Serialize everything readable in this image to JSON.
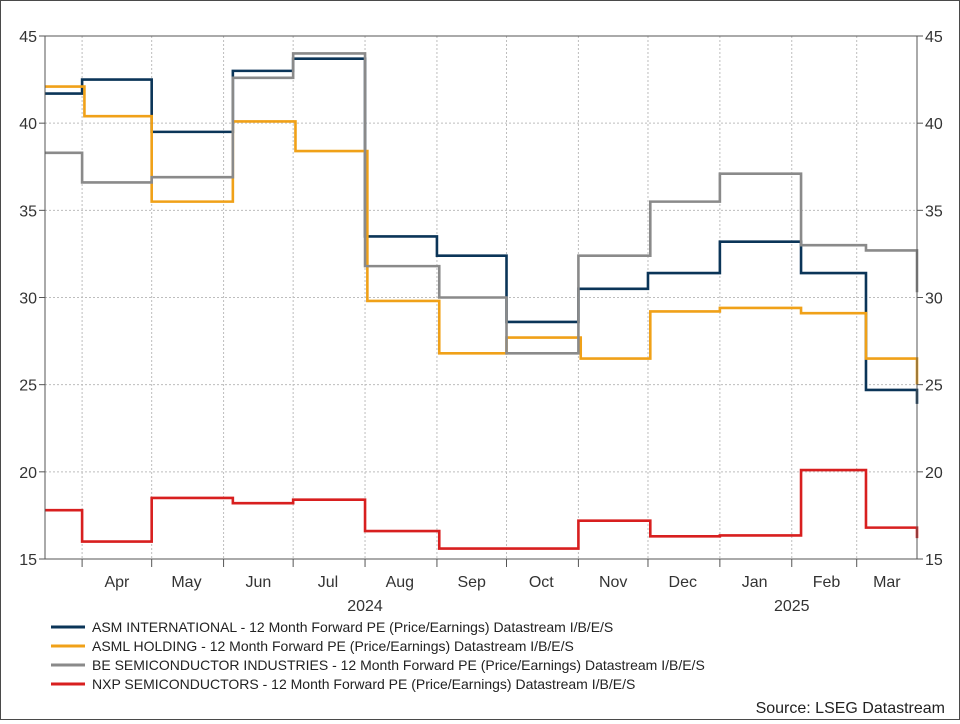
{
  "chart_data": {
    "type": "line",
    "step": true,
    "ylim": [
      15,
      45
    ],
    "yticks": [
      15,
      20,
      25,
      30,
      35,
      40,
      45
    ],
    "y_axis_sides": "both",
    "grid": true,
    "xlim": [
      "2024-03-16",
      "2025-03-27"
    ],
    "x_tick_marks": [
      "2024-04-01",
      "2024-05-01",
      "2024-06-01",
      "2024-07-01",
      "2024-08-01",
      "2024-09-01",
      "2024-10-01",
      "2024-11-01",
      "2024-12-01",
      "2025-01-01",
      "2025-02-01",
      "2025-03-01"
    ],
    "month_labels": [
      {
        "label": "Apr",
        "date": "2024-04-16"
      },
      {
        "label": "May",
        "date": "2024-05-16"
      },
      {
        "label": "Jun",
        "date": "2024-06-16"
      },
      {
        "label": "Jul",
        "date": "2024-07-16"
      },
      {
        "label": "Aug",
        "date": "2024-08-16"
      },
      {
        "label": "Sep",
        "date": "2024-09-16"
      },
      {
        "label": "Oct",
        "date": "2024-10-16"
      },
      {
        "label": "Nov",
        "date": "2024-11-16"
      },
      {
        "label": "Dec",
        "date": "2024-12-16"
      },
      {
        "label": "Jan",
        "date": "2025-01-16"
      },
      {
        "label": "Feb",
        "date": "2025-02-16"
      },
      {
        "label": "Mar",
        "date": "2025-03-14"
      }
    ],
    "year_labels": [
      {
        "label": "2024",
        "date": "2024-08-01"
      },
      {
        "label": "2025",
        "date": "2025-02-01"
      }
    ],
    "series": [
      {
        "name": "ASM INTERNATIONAL - 12 Month Forward PE (Price/Earnings) Datastream I/B/E/S",
        "color": "#0b3558",
        "points": [
          [
            "2024-03-16",
            41.7
          ],
          [
            "2024-04-01",
            42.5
          ],
          [
            "2024-05-01",
            39.5
          ],
          [
            "2024-06-05",
            43.0
          ],
          [
            "2024-07-01",
            43.7
          ],
          [
            "2024-08-01",
            33.5
          ],
          [
            "2024-09-01",
            32.4
          ],
          [
            "2024-10-01",
            28.6
          ],
          [
            "2024-11-01",
            30.5
          ],
          [
            "2024-12-01",
            31.4
          ],
          [
            "2025-01-01",
            33.2
          ],
          [
            "2025-02-05",
            31.4
          ],
          [
            "2025-03-05",
            24.7
          ],
          [
            "2025-03-24",
            24.7
          ],
          [
            "2025-03-27",
            23.9
          ]
        ]
      },
      {
        "name": "ASML HOLDING - 12 Month Forward PE (Price/Earnings) Datastream I/B/E/S",
        "color": "#f0a118",
        "points": [
          [
            "2024-03-16",
            42.1
          ],
          [
            "2024-04-02",
            40.4
          ],
          [
            "2024-05-01",
            35.5
          ],
          [
            "2024-06-05",
            40.1
          ],
          [
            "2024-07-02",
            38.4
          ],
          [
            "2024-08-02",
            29.8
          ],
          [
            "2024-09-02",
            26.8
          ],
          [
            "2024-10-01",
            27.7
          ],
          [
            "2024-11-02",
            26.5
          ],
          [
            "2024-12-02",
            29.2
          ],
          [
            "2025-01-01",
            29.4
          ],
          [
            "2025-02-05",
            29.1
          ],
          [
            "2025-03-05",
            26.5
          ],
          [
            "2025-03-24",
            26.5
          ],
          [
            "2025-03-27",
            25.0
          ]
        ]
      },
      {
        "name": "BE SEMICONDUCTOR INDUSTRIES - 12 Month Forward PE (Price/Earnings) Datastream I/B/E/S",
        "color": "#8a8a8a",
        "points": [
          [
            "2024-03-16",
            38.3
          ],
          [
            "2024-04-01",
            36.6
          ],
          [
            "2024-05-01",
            36.9
          ],
          [
            "2024-06-05",
            42.6
          ],
          [
            "2024-07-01",
            44.0
          ],
          [
            "2024-08-01",
            31.8
          ],
          [
            "2024-09-02",
            30.0
          ],
          [
            "2024-10-01",
            26.8
          ],
          [
            "2024-11-01",
            32.4
          ],
          [
            "2024-12-02",
            35.5
          ],
          [
            "2025-01-01",
            37.1
          ],
          [
            "2025-02-05",
            33.0
          ],
          [
            "2025-03-05",
            32.7
          ],
          [
            "2025-03-24",
            32.7
          ],
          [
            "2025-03-27",
            30.3
          ]
        ]
      },
      {
        "name": "NXP SEMICONDUCTORS - 12 Month Forward PE (Price/Earnings) Datastream I/B/E/S",
        "color": "#d81f1f",
        "points": [
          [
            "2024-03-16",
            17.8
          ],
          [
            "2024-04-01",
            16.0
          ],
          [
            "2024-05-01",
            18.5
          ],
          [
            "2024-06-05",
            18.2
          ],
          [
            "2024-07-01",
            18.4
          ],
          [
            "2024-08-01",
            16.6
          ],
          [
            "2024-09-02",
            15.6
          ],
          [
            "2024-11-01",
            17.2
          ],
          [
            "2024-12-02",
            16.3
          ],
          [
            "2025-01-01",
            16.35
          ],
          [
            "2025-02-05",
            20.1
          ],
          [
            "2025-03-05",
            16.8
          ],
          [
            "2025-03-24",
            16.8
          ],
          [
            "2025-03-27",
            16.2
          ]
        ]
      }
    ]
  },
  "source": "Source: LSEG Datastream"
}
